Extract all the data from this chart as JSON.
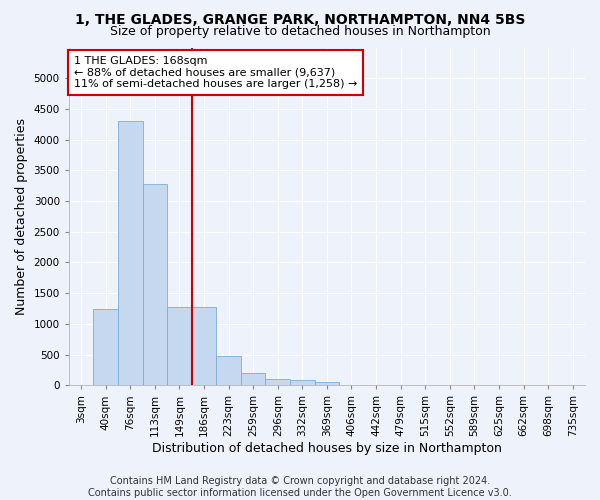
{
  "title_line1": "1, THE GLADES, GRANGE PARK, NORTHAMPTON, NN4 5BS",
  "title_line2": "Size of property relative to detached houses in Northampton",
  "xlabel": "Distribution of detached houses by size in Northampton",
  "ylabel": "Number of detached properties",
  "categories": [
    "3sqm",
    "40sqm",
    "76sqm",
    "113sqm",
    "149sqm",
    "186sqm",
    "223sqm",
    "259sqm",
    "296sqm",
    "332sqm",
    "369sqm",
    "406sqm",
    "442sqm",
    "479sqm",
    "515sqm",
    "552sqm",
    "589sqm",
    "625sqm",
    "662sqm",
    "698sqm",
    "735sqm"
  ],
  "values": [
    0,
    1250,
    4300,
    3280,
    1280,
    1280,
    480,
    200,
    100,
    80,
    55,
    0,
    0,
    0,
    0,
    0,
    0,
    0,
    0,
    0,
    0
  ],
  "bar_color": "#c5d8f0",
  "bar_edge_color": "#7bafd4",
  "reference_line_color": "#cc0000",
  "annotation_text": "1 THE GLADES: 168sqm\n← 88% of detached houses are smaller (9,637)\n11% of semi-detached houses are larger (1,258) →",
  "annotation_box_color": "#cc0000",
  "ylim": [
    0,
    5500
  ],
  "yticks": [
    0,
    500,
    1000,
    1500,
    2000,
    2500,
    3000,
    3500,
    4000,
    4500,
    5000
  ],
  "footnote": "Contains HM Land Registry data © Crown copyright and database right 2024.\nContains public sector information licensed under the Open Government Licence v3.0.",
  "background_color": "#eef2fb",
  "grid_color": "#ffffff",
  "title_fontsize": 10,
  "subtitle_fontsize": 9,
  "axis_label_fontsize": 9,
  "tick_fontsize": 7.5,
  "annotation_fontsize": 8,
  "footnote_fontsize": 7
}
